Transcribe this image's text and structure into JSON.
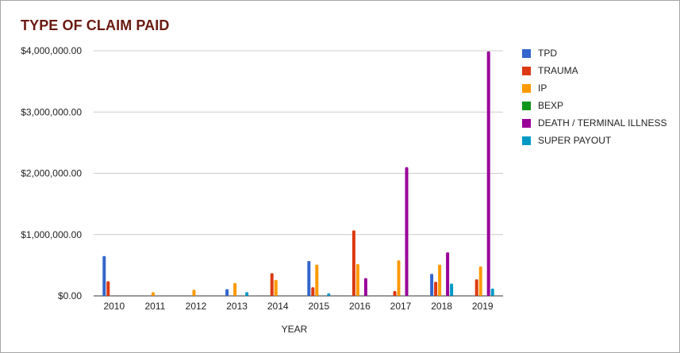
{
  "chart_data": {
    "type": "bar",
    "title": "TYPE OF CLAIM PAID",
    "xlabel": "YEAR",
    "ylabel": "",
    "ylim": [
      0,
      4000000
    ],
    "y_ticks": [
      0,
      1000000,
      2000000,
      3000000,
      4000000
    ],
    "y_tick_labels": [
      "$0.00",
      "$1,000,000.00",
      "$2,000,000.00",
      "$3,000,000.00",
      "$4,000,000.00"
    ],
    "grid": true,
    "legend_position": "right",
    "categories": [
      "2010",
      "2011",
      "2012",
      "2013",
      "2014",
      "2015",
      "2016",
      "2017",
      "2018",
      "2019"
    ],
    "series": [
      {
        "name": "TPD",
        "color": "#3366cc",
        "values": [
          650000,
          0,
          0,
          110000,
          0,
          570000,
          0,
          0,
          360000,
          0
        ]
      },
      {
        "name": "TRAUMA",
        "color": "#dc3912",
        "values": [
          240000,
          0,
          0,
          0,
          370000,
          140000,
          1070000,
          80000,
          230000,
          270000
        ]
      },
      {
        "name": "IP",
        "color": "#ff9900",
        "values": [
          0,
          60000,
          100000,
          210000,
          260000,
          510000,
          520000,
          580000,
          510000,
          480000
        ]
      },
      {
        "name": "BEXP",
        "color": "#109618",
        "values": [
          0,
          0,
          0,
          0,
          0,
          0,
          0,
          0,
          0,
          0
        ]
      },
      {
        "name": "DEATH / TERMINAL ILLNESS",
        "color": "#990099",
        "values": [
          0,
          0,
          0,
          0,
          0,
          0,
          290000,
          2100000,
          710000,
          3990000
        ]
      },
      {
        "name": "SUPER PAYOUT",
        "color": "#0099c6",
        "values": [
          0,
          0,
          0,
          60000,
          0,
          40000,
          0,
          0,
          200000,
          120000
        ]
      }
    ]
  }
}
